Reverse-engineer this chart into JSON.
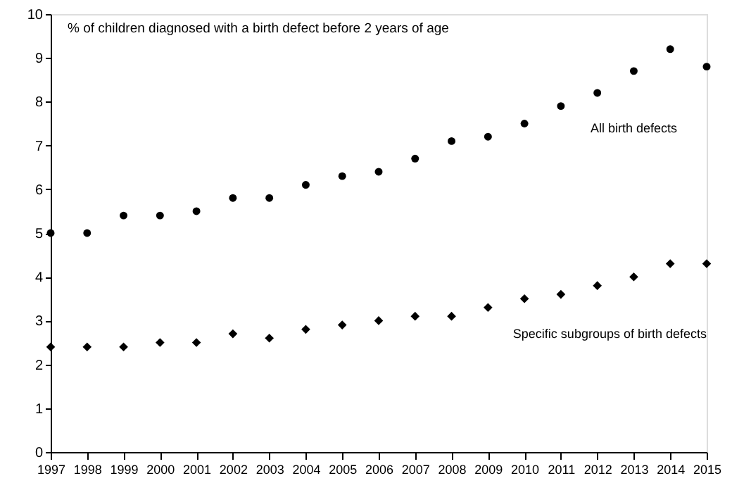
{
  "chart_data": {
    "type": "scatter",
    "title": "% of children diagnosed with a birth defect before 2 years of age",
    "x": [
      1997,
      1998,
      1999,
      2000,
      2001,
      2002,
      2003,
      2004,
      2005,
      2006,
      2007,
      2008,
      2009,
      2010,
      2011,
      2012,
      2013,
      2014,
      2015
    ],
    "series": [
      {
        "name": "All birth defects",
        "color": "#000000",
        "marker": "circle",
        "values": [
          5.0,
          5.0,
          5.4,
          5.4,
          5.5,
          5.8,
          5.8,
          6.1,
          6.3,
          6.4,
          6.7,
          7.1,
          7.2,
          7.5,
          7.9,
          8.2,
          8.7,
          9.2,
          8.8
        ]
      },
      {
        "name": "Specific subgroups of birth defects",
        "color": "#000000",
        "marker": "diamond",
        "values": [
          2.4,
          2.4,
          2.4,
          2.5,
          2.5,
          2.7,
          2.6,
          2.8,
          2.9,
          3.0,
          3.1,
          3.1,
          3.3,
          3.5,
          3.6,
          3.8,
          4.0,
          4.3,
          4.3
        ]
      }
    ],
    "xlim": [
      1997,
      2015
    ],
    "xticks": [
      1997,
      1998,
      1999,
      2000,
      2001,
      2002,
      2003,
      2004,
      2005,
      2006,
      2007,
      2008,
      2009,
      2010,
      2011,
      2012,
      2013,
      2014,
      2015
    ],
    "ylim": [
      0,
      10
    ],
    "yticks": [
      0,
      1,
      2,
      3,
      4,
      5,
      6,
      7,
      8,
      9,
      10
    ],
    "grid": false
  }
}
